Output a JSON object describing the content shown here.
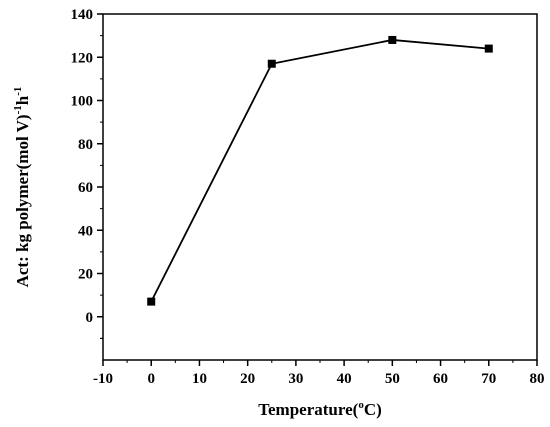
{
  "chart_data": {
    "type": "line",
    "xlabel": "Temperature(",
    "xlabel_sup": "o",
    "xlabel_end": "C)",
    "ylabel_main": "Act: kg polymer(mol V)",
    "ylabel_sup1": "-1",
    "ylabel_mid": "h",
    "ylabel_sup2": "-1",
    "xlim": [
      -10,
      80
    ],
    "ylim": [
      -20,
      140
    ],
    "xticks": [
      -10,
      0,
      10,
      20,
      30,
      40,
      50,
      60,
      70,
      80
    ],
    "yticks": [
      0,
      20,
      40,
      60,
      80,
      100,
      120,
      140
    ],
    "grid": false,
    "series": [
      {
        "x": [
          0,
          25,
          50,
          70
        ],
        "y": [
          7,
          117,
          128,
          124
        ],
        "marker": "square",
        "color": "#000000"
      }
    ]
  }
}
